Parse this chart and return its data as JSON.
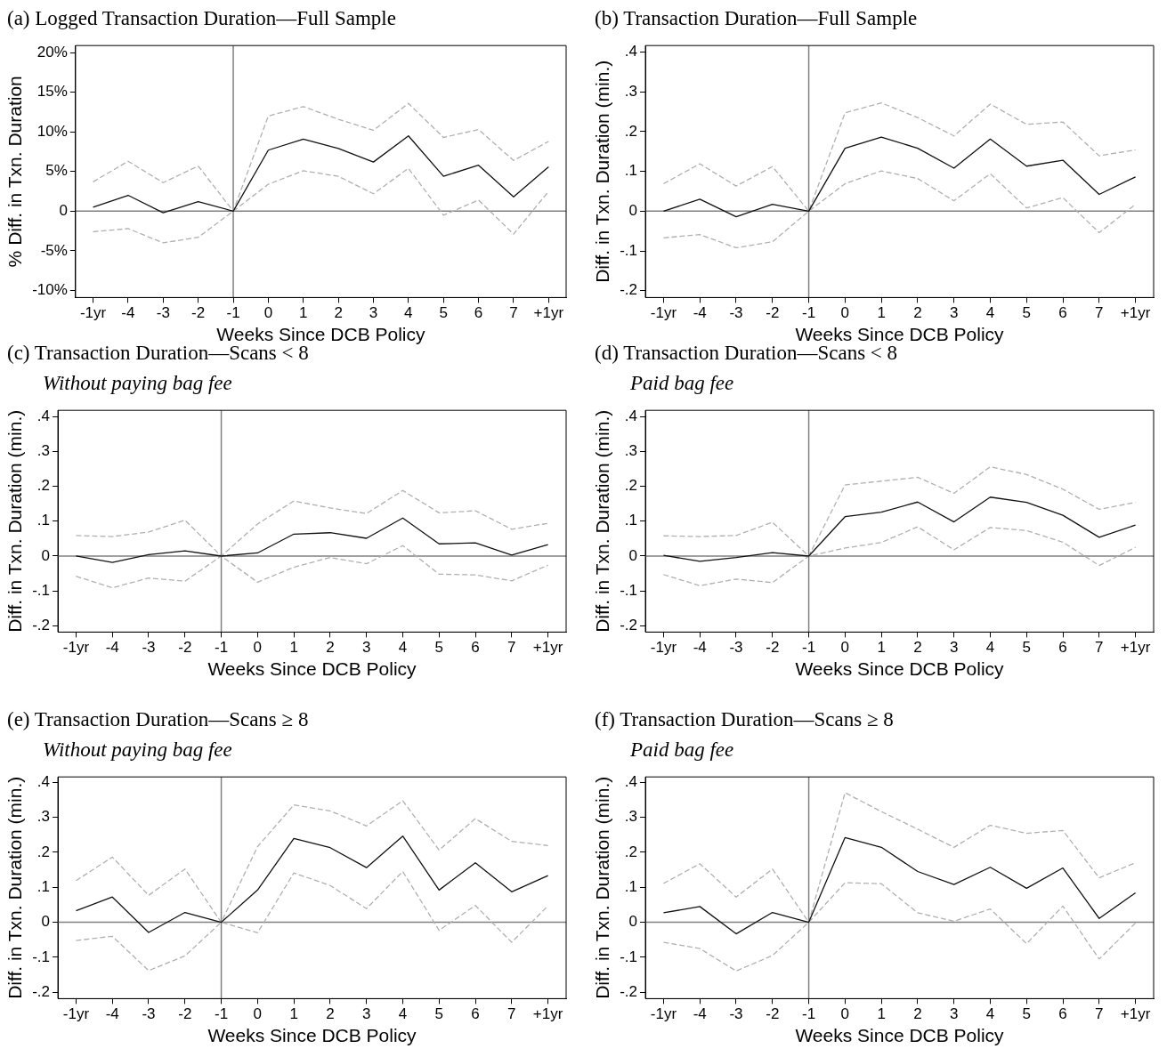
{
  "chart_data": [
    {
      "type": "line",
      "title": "(a) Logged Transaction Duration—Full Sample",
      "xlabel": "Weeks Since DCB Policy",
      "ylabel": "% Diff. in Txn. Duration",
      "categories": [
        "-1yr",
        "-4",
        "-3",
        "-2",
        "-1",
        "0",
        "1",
        "2",
        "3",
        "4",
        "5",
        "6",
        "7",
        "+1yr"
      ],
      "ylim": [
        -10.9,
        20.9
      ],
      "yticks": [
        {
          "value": -10,
          "label": "-10%"
        },
        {
          "value": -5,
          "label": "-5%"
        },
        {
          "value": 0,
          "label": "0"
        },
        {
          "value": 5,
          "label": "5%"
        },
        {
          "value": 10,
          "label": "10%"
        },
        {
          "value": 15,
          "label": "15%"
        },
        {
          "value": 20,
          "label": "20%"
        }
      ],
      "grid": false,
      "legend": false,
      "marker": "none",
      "ref_lines": [
        {
          "axis": "y",
          "value": 0,
          "color": "#808080"
        },
        {
          "axis": "x",
          "value": "-1",
          "color": "#808080"
        }
      ],
      "series": [
        {
          "color": "#111111",
          "line_style": "solid",
          "values": [
            0.5,
            2.0,
            -0.2,
            1.2,
            0,
            7.7,
            9.1,
            7.9,
            6.2,
            9.5,
            4.4,
            5.8,
            1.8,
            5.6
          ]
        },
        {
          "color": "#b0b0b0",
          "line_style": "dashed",
          "values": [
            3.7,
            6.3,
            3.6,
            5.7,
            0,
            12.0,
            13.2,
            11.6,
            10.2,
            13.6,
            9.3,
            10.3,
            6.4,
            8.8
          ]
        },
        {
          "color": "#b0b0b0",
          "line_style": "dashed",
          "values": [
            -2.6,
            -2.2,
            -4.0,
            -3.3,
            0,
            3.4,
            5.1,
            4.4,
            2.2,
            5.4,
            -0.5,
            1.4,
            -2.9,
            2.5
          ]
        }
      ]
    },
    {
      "type": "line",
      "title": "(b) Transaction Duration—Full Sample",
      "xlabel": "Weeks Since DCB Policy",
      "ylabel": "Diff. in Txn. Duration (min.)",
      "categories": [
        "-1yr",
        "-4",
        "-3",
        "-2",
        "-1",
        "0",
        "1",
        "2",
        "3",
        "4",
        "5",
        "6",
        "7",
        "+1yr"
      ],
      "ylim": [
        -0.217,
        0.416
      ],
      "yticks": [
        {
          "value": -0.2,
          "label": "-.2"
        },
        {
          "value": -0.1,
          "label": "-.1"
        },
        {
          "value": 0,
          "label": "0"
        },
        {
          "value": 0.1,
          "label": ".1"
        },
        {
          "value": 0.2,
          "label": ".2"
        },
        {
          "value": 0.3,
          "label": ".3"
        },
        {
          "value": 0.4,
          "label": ".4"
        }
      ],
      "grid": false,
      "legend": false,
      "marker": "none",
      "ref_lines": [
        {
          "axis": "y",
          "value": 0,
          "color": "#808080"
        },
        {
          "axis": "x",
          "value": "-1",
          "color": "#808080"
        }
      ],
      "series": [
        {
          "color": "#111111",
          "line_style": "solid",
          "values": [
            0,
            0.03,
            -0.014,
            0.017,
            0,
            0.158,
            0.186,
            0.158,
            0.108,
            0.181,
            0.113,
            0.128,
            0.042,
            0.086
          ]
        },
        {
          "color": "#b0b0b0",
          "line_style": "dashed",
          "values": [
            0.069,
            0.119,
            0.063,
            0.112,
            0,
            0.247,
            0.272,
            0.235,
            0.189,
            0.269,
            0.218,
            0.224,
            0.139,
            0.154
          ]
        },
        {
          "color": "#b0b0b0",
          "line_style": "dashed",
          "values": [
            -0.067,
            -0.059,
            -0.092,
            -0.077,
            0,
            0.069,
            0.101,
            0.082,
            0.026,
            0.094,
            0.008,
            0.034,
            -0.054,
            0.017
          ]
        }
      ]
    },
    {
      "type": "line",
      "title": "(c) Transaction Duration—Scans < 8",
      "subtitle": "Without paying bag fee",
      "xlabel": "Weeks Since DCB Policy",
      "ylabel": "Diff. in Txn. Duration (min.)",
      "categories": [
        "-1yr",
        "-4",
        "-3",
        "-2",
        "-1",
        "0",
        "1",
        "2",
        "3",
        "4",
        "5",
        "6",
        "7",
        "+1yr"
      ],
      "ylim": [
        -0.218,
        0.418
      ],
      "yticks": [
        {
          "value": -0.2,
          "label": "-.2"
        },
        {
          "value": -0.1,
          "label": "-.1"
        },
        {
          "value": 0,
          "label": "0"
        },
        {
          "value": 0.1,
          "label": ".1"
        },
        {
          "value": 0.2,
          "label": ".2"
        },
        {
          "value": 0.3,
          "label": ".3"
        },
        {
          "value": 0.4,
          "label": ".4"
        }
      ],
      "grid": false,
      "legend": false,
      "marker": "none",
      "ref_lines": [
        {
          "axis": "y",
          "value": 0,
          "color": "#808080"
        },
        {
          "axis": "x",
          "value": "-1",
          "color": "#808080"
        }
      ],
      "series": [
        {
          "color": "#111111",
          "line_style": "solid",
          "values": [
            0,
            -0.018,
            0.004,
            0.015,
            0,
            0.009,
            0.063,
            0.067,
            0.051,
            0.109,
            0.035,
            0.038,
            0.003,
            0.033
          ]
        },
        {
          "color": "#b0b0b0",
          "line_style": "dashed",
          "values": [
            0.059,
            0.056,
            0.069,
            0.103,
            0,
            0.092,
            0.158,
            0.138,
            0.122,
            0.188,
            0.124,
            0.13,
            0.077,
            0.094
          ]
        },
        {
          "color": "#b0b0b0",
          "line_style": "dashed",
          "values": [
            -0.058,
            -0.091,
            -0.063,
            -0.072,
            0,
            -0.075,
            -0.032,
            -0.004,
            -0.022,
            0.03,
            -0.052,
            -0.054,
            -0.071,
            -0.026
          ]
        }
      ]
    },
    {
      "type": "line",
      "title": "(d) Transaction Duration—Scans < 8",
      "subtitle": "Paid bag fee",
      "xlabel": "Weeks Since DCB Policy",
      "ylabel": "Diff. in Txn. Duration (min.)",
      "categories": [
        "-1yr",
        "-4",
        "-3",
        "-2",
        "-1",
        "0",
        "1",
        "2",
        "3",
        "4",
        "5",
        "6",
        "7",
        "+1yr"
      ],
      "ylim": [
        -0.218,
        0.418
      ],
      "yticks": [
        {
          "value": -0.2,
          "label": "-.2"
        },
        {
          "value": -0.1,
          "label": "-.1"
        },
        {
          "value": 0,
          "label": "0"
        },
        {
          "value": 0.1,
          "label": ".1"
        },
        {
          "value": 0.2,
          "label": ".2"
        },
        {
          "value": 0.3,
          "label": ".3"
        },
        {
          "value": 0.4,
          "label": ".4"
        }
      ],
      "grid": false,
      "legend": false,
      "marker": "none",
      "ref_lines": [
        {
          "axis": "y",
          "value": 0,
          "color": "#808080"
        },
        {
          "axis": "x",
          "value": "-1",
          "color": "#808080"
        }
      ],
      "series": [
        {
          "color": "#111111",
          "line_style": "solid",
          "values": [
            0.002,
            -0.015,
            -0.004,
            0.01,
            0,
            0.113,
            0.126,
            0.155,
            0.098,
            0.169,
            0.154,
            0.117,
            0.054,
            0.089
          ]
        },
        {
          "color": "#b0b0b0",
          "line_style": "dashed",
          "values": [
            0.058,
            0.056,
            0.059,
            0.097,
            0,
            0.204,
            0.215,
            0.226,
            0.18,
            0.256,
            0.234,
            0.192,
            0.134,
            0.154
          ]
        },
        {
          "color": "#b0b0b0",
          "line_style": "dashed",
          "values": [
            -0.053,
            -0.085,
            -0.066,
            -0.076,
            0,
            0.023,
            0.039,
            0.084,
            0.018,
            0.082,
            0.073,
            0.04,
            -0.027,
            0.025
          ]
        }
      ]
    },
    {
      "type": "line",
      "title": "(e) Transaction Duration—Scans ≥ 8",
      "subtitle": "Without paying bag fee",
      "xlabel": "Weeks Since DCB Policy",
      "ylabel": "Diff. in Txn. Duration (min.)",
      "categories": [
        "-1yr",
        "-4",
        "-3",
        "-2",
        "-1",
        "0",
        "1",
        "2",
        "3",
        "4",
        "5",
        "6",
        "7",
        "+1yr"
      ],
      "ylim": [
        -0.218,
        0.415
      ],
      "yticks": [
        {
          "value": -0.2,
          "label": "-.2"
        },
        {
          "value": -0.1,
          "label": "-.1"
        },
        {
          "value": 0,
          "label": "0"
        },
        {
          "value": 0.1,
          "label": ".1"
        },
        {
          "value": 0.2,
          "label": ".2"
        },
        {
          "value": 0.3,
          "label": ".3"
        },
        {
          "value": 0.4,
          "label": ".4"
        }
      ],
      "grid": false,
      "legend": false,
      "marker": "none",
      "ref_lines": [
        {
          "axis": "y",
          "value": 0,
          "color": "#808080"
        },
        {
          "axis": "x",
          "value": "-1",
          "color": "#808080"
        }
      ],
      "series": [
        {
          "color": "#111111",
          "line_style": "solid",
          "values": [
            0.033,
            0.072,
            -0.029,
            0.028,
            0,
            0.092,
            0.239,
            0.213,
            0.156,
            0.246,
            0.092,
            0.17,
            0.087,
            0.133
          ]
        },
        {
          "color": "#b0b0b0",
          "line_style": "dashed",
          "values": [
            0.119,
            0.186,
            0.077,
            0.152,
            0,
            0.216,
            0.335,
            0.318,
            0.275,
            0.347,
            0.206,
            0.296,
            0.231,
            0.219
          ]
        },
        {
          "color": "#b0b0b0",
          "line_style": "dashed",
          "values": [
            -0.052,
            -0.04,
            -0.138,
            -0.096,
            0,
            -0.03,
            0.141,
            0.105,
            0.039,
            0.145,
            -0.023,
            0.048,
            -0.057,
            0.047
          ]
        }
      ]
    },
    {
      "type": "line",
      "title": "(f) Transaction Duration—Scans ≥ 8",
      "subtitle": "Paid bag fee",
      "xlabel": "Weeks Since DCB Policy",
      "ylabel": "Diff. in Txn. Duration (min.)",
      "categories": [
        "-1yr",
        "-4",
        "-3",
        "-2",
        "-1",
        "0",
        "1",
        "2",
        "3",
        "4",
        "5",
        "6",
        "7",
        "+1yr"
      ],
      "ylim": [
        -0.218,
        0.415
      ],
      "yticks": [
        {
          "value": -0.2,
          "label": "-.2"
        },
        {
          "value": -0.1,
          "label": "-.1"
        },
        {
          "value": 0,
          "label": "0"
        },
        {
          "value": 0.1,
          "label": ".1"
        },
        {
          "value": 0.2,
          "label": ".2"
        },
        {
          "value": 0.3,
          "label": ".3"
        },
        {
          "value": 0.4,
          "label": ".4"
        }
      ],
      "grid": false,
      "legend": false,
      "marker": "none",
      "ref_lines": [
        {
          "axis": "y",
          "value": 0,
          "color": "#808080"
        },
        {
          "axis": "x",
          "value": "-1",
          "color": "#808080"
        }
      ],
      "series": [
        {
          "color": "#111111",
          "line_style": "solid",
          "values": [
            0.027,
            0.045,
            -0.033,
            0.028,
            0,
            0.242,
            0.214,
            0.145,
            0.108,
            0.157,
            0.097,
            0.155,
            0.011,
            0.084
          ]
        },
        {
          "color": "#b0b0b0",
          "line_style": "dashed",
          "values": [
            0.111,
            0.167,
            0.072,
            0.152,
            0,
            0.37,
            0.316,
            0.266,
            0.214,
            0.277,
            0.254,
            0.262,
            0.127,
            0.17
          ]
        },
        {
          "color": "#b0b0b0",
          "line_style": "dashed",
          "values": [
            -0.057,
            -0.075,
            -0.139,
            -0.095,
            0,
            0.113,
            0.11,
            0.027,
            0.003,
            0.038,
            -0.061,
            0.046,
            -0.105,
            -0.002
          ]
        }
      ]
    }
  ]
}
